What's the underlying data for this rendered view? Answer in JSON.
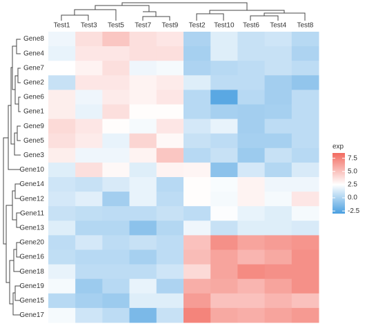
{
  "chart_data": {
    "type": "heatmap",
    "categories": [
      "Test1",
      "Test3",
      "Test5",
      "Test7",
      "Test9",
      "Test2",
      "Test10",
      "Test6",
      "Test4",
      "Test8"
    ],
    "rows": [
      "Gene8",
      "Gene4",
      "Gene7",
      "Gene2",
      "Gene6",
      "Gene1",
      "Gene9",
      "Gene5",
      "Gene3",
      "Gene10",
      "Gene14",
      "Gene12",
      "Gene11",
      "Gene13",
      "Gene20",
      "Gene16",
      "Gene18",
      "Gene19",
      "Gene15",
      "Gene17"
    ],
    "values": [
      [
        2,
        3.8,
        4.8,
        3.8,
        3.5,
        0,
        1.5,
        0.8,
        1,
        0.3
      ],
      [
        1.8,
        3.5,
        3.5,
        3.8,
        3.8,
        -0.2,
        1.5,
        0.8,
        0.8,
        0
      ],
      [
        2.5,
        3,
        3.8,
        2,
        2.2,
        0,
        0.3,
        0.5,
        0.8,
        0.5
      ],
      [
        0.8,
        3.5,
        3.5,
        3,
        3.3,
        1.5,
        0.5,
        0.5,
        -0.3,
        -0.8
      ],
      [
        3.2,
        2,
        3.3,
        3,
        3.5,
        0.3,
        -2.5,
        0.3,
        -0.3,
        0.5
      ],
      [
        3.2,
        1.8,
        3.8,
        2.6,
        2.6,
        0.3,
        -0.2,
        -0.3,
        -0.2,
        0.5
      ],
      [
        4,
        3.5,
        2.6,
        2.2,
        3.5,
        1.2,
        1.8,
        -0.3,
        0.5,
        0.5
      ],
      [
        3.8,
        3.3,
        1.8,
        4.2,
        2.8,
        0.8,
        0.5,
        -0.2,
        -0.2,
        0.5
      ],
      [
        3.2,
        2,
        2,
        3,
        4.8,
        0.3,
        0.8,
        -0.5,
        0.8,
        0.3
      ],
      [
        1.5,
        3.8,
        2.8,
        1.5,
        3,
        2.9,
        -1,
        1.2,
        0.2,
        1.3
      ],
      [
        1,
        0.8,
        1.3,
        1.8,
        0.3,
        2.6,
        2.3,
        3,
        2,
        2
      ],
      [
        1.2,
        1.6,
        -0.3,
        1.8,
        0.5,
        2.6,
        2.2,
        3,
        2.2,
        3.5
      ],
      [
        0.8,
        0.6,
        0.5,
        0.5,
        0.8,
        0.5,
        2.4,
        1.8,
        1.5,
        2.2
      ],
      [
        1.5,
        0.2,
        0.2,
        -1,
        0.2,
        2,
        0.8,
        1.5,
        1.5,
        1.3
      ],
      [
        0.5,
        1.2,
        0.5,
        0.8,
        0.5,
        5,
        7,
        6.2,
        6.5,
        6.8
      ],
      [
        0.6,
        0.3,
        0.3,
        -0.2,
        0.5,
        5.2,
        6.2,
        5.5,
        6,
        7
      ],
      [
        1.8,
        0.5,
        0.5,
        0.5,
        1,
        4,
        6.2,
        7.2,
        7,
        7
      ],
      [
        2.2,
        -0.5,
        0.3,
        1.8,
        0,
        5.8,
        6,
        5.5,
        6.2,
        7
      ],
      [
        0.3,
        -0.2,
        -0.5,
        1.5,
        1.5,
        6.5,
        5,
        5,
        5.5,
        5
      ],
      [
        2.2,
        1,
        0.5,
        -1.5,
        0.8,
        7.5,
        6,
        5.8,
        6.2,
        6.6
      ]
    ],
    "legend_title": "exp",
    "color_scale": {
      "low": "#4a9fe0",
      "mid": "#ffffff",
      "high": "#f26b60",
      "midpoint": 2.5
    },
    "colorlim": [
      -3,
      8.5
    ],
    "colorticks": [
      7.5,
      {
        "value": 5,
        "label": "5.0"
      },
      2.5,
      {
        "value": 0,
        "label": "0.0"
      },
      -2.5
    ]
  }
}
